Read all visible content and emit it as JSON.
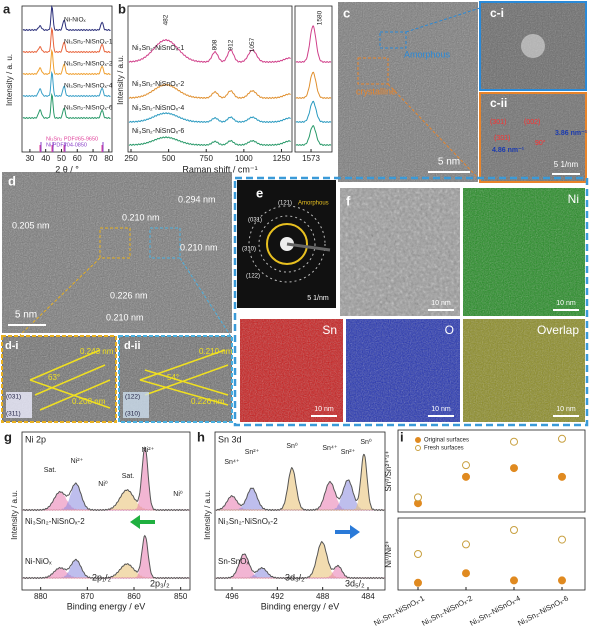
{
  "figure": {
    "a": {
      "label": "a",
      "ylabel": "Intensity / a. u.",
      "xlabel": "2 θ / °",
      "xlim": [
        25,
        82
      ],
      "xticks": [
        30,
        40,
        50,
        60,
        70,
        80
      ],
      "series": [
        {
          "name": "Ni-NiOₓ",
          "color": "#2b2f7a"
        },
        {
          "name": "Ni₃Sn₂-NiSnOₓ-1",
          "color": "#e8643c"
        },
        {
          "name": "Ni₃Sn₂-NiSnOₓ-2",
          "color": "#f0a030"
        },
        {
          "name": "Ni₃Sn₂-NiSnOₓ-4",
          "color": "#3aa0c8"
        },
        {
          "name": "Ni₃Sn₂-NiSnOₓ-6",
          "color": "#2a9a6a"
        }
      ],
      "refs": [
        {
          "name": "Ni₃Sn₂ PDF#65-9650",
          "color": "#e0409a"
        },
        {
          "name": "Ni  PDF#04-0850",
          "color": "#8a40c8"
        }
      ]
    },
    "b": {
      "label": "b",
      "ylabel": "Intensity / a.u.",
      "xlabel": "Raman shift / cm⁻¹",
      "xlim": [
        230,
        1320
      ],
      "xticks": [
        250,
        500,
        750,
        1000,
        1250
      ],
      "peaks": [
        482,
        808,
        912,
        1057
      ],
      "inset_xlim": [
        1560,
        1590
      ],
      "inset_xtick": 1573,
      "inset_peak": 1580,
      "series": [
        {
          "name": "Ni₃Sn₂-NiSnOₓ-1",
          "color": "#d0408a"
        },
        {
          "name": "Ni₃Sn₂-NiSnOₓ-2",
          "color": "#e09030"
        },
        {
          "name": "Ni₃Sn₂-NiSnOₓ-4",
          "color": "#2a9ac0"
        },
        {
          "name": "Ni₃Sn₂-NiSnOₓ-6",
          "color": "#2a9a6a"
        }
      ]
    },
    "c": {
      "label": "c",
      "amorphous": "Amorphous",
      "crystalline": "crystalline",
      "scale": "5 nm",
      "ci": {
        "label": "c-i"
      },
      "cii": {
        "label": "c-ii",
        "planes": [
          "(301)",
          "(002)",
          "(301)"
        ],
        "d1": "3.86 nm⁻¹",
        "d2": "4.86 nm⁻¹",
        "angle": "90°",
        "scale": "5 1/nm"
      }
    },
    "d": {
      "label": "d",
      "spacings": [
        "0.205 nm",
        "0.210 nm",
        "0.294 nm",
        "0.210 nm",
        "0.226 nm",
        "0.210 nm"
      ],
      "scale": "5 nm",
      "di": {
        "label": "d-i",
        "s1": "0.243 nm",
        "angle": "63°",
        "s2": "0.208 nm",
        "p1": "(031)",
        "p2": "(311)"
      },
      "dii": {
        "label": "d-ii",
        "s1": "0.210 nm",
        "angle": "54°",
        "s2": "0.226 nm",
        "p1": "(122)",
        "p2": "(310)"
      }
    },
    "e": {
      "label": "e",
      "rings": [
        "(031)",
        "(121)",
        "(310)",
        "(122)"
      ],
      "amorphous": "Amorphous",
      "scale": "5 1/nm"
    },
    "f": {
      "label": "f",
      "maps": [
        {
          "name": "Ni",
          "color": "#1f8a1f"
        },
        {
          "name": "Sn",
          "color": "#c81818"
        },
        {
          "name": "O",
          "color": "#2030b0"
        },
        {
          "name": "Overlap",
          "color": "#8a8a20"
        }
      ],
      "scale": "10 nm"
    },
    "g": {
      "label": "g",
      "title": "Ni 2p",
      "ylabel": "Intensity / a.u.",
      "xlabel": "Binding energy / eV",
      "xlim": [
        884,
        848
      ],
      "xticks": [
        880,
        870,
        860,
        850
      ],
      "peaks": [
        "Sat.",
        "Ni²⁺",
        "Ni⁰",
        "Sat.",
        "Ni²⁺",
        "Ni⁰"
      ],
      "samples": [
        "Ni₃Sn₂-NiSnOₓ-2",
        "Ni-NiOₓ"
      ],
      "orbitals": [
        "2p₁/₂",
        "2p₃/₂"
      ]
    },
    "h": {
      "label": "h",
      "title": "Sn 3d",
      "ylabel": "Intensity / a.u.",
      "xlabel": "Binding energy / eV",
      "xlim": [
        497.5,
        482.5
      ],
      "xticks": [
        496,
        492,
        488,
        484
      ],
      "peaks": [
        "Sn⁴⁺",
        "Sn²⁺",
        "Sn⁰",
        "Sn⁴⁺",
        "Sn²⁺",
        "Sn⁰"
      ],
      "samples": [
        "Ni₃Sn₂-NiSnOₓ-2",
        "Sn-SnOₓ"
      ],
      "orbitals": [
        "3d₃/₂",
        "3d₅/₂"
      ]
    },
    "i": {
      "label": "i",
      "type": "scatter",
      "categories": [
        "Ni₃Sn₂-NiSnOₓ-1",
        "Ni₃Sn₂-NiSnOₓ-2",
        "Ni₃Sn₂-NiSnOₓ-4",
        "Ni₃Sn₂-NiSnOₓ-6"
      ],
      "upper": {
        "ylabel": "Sn⁰/Sn²⁺'⁴⁺",
        "ylim": [
          0,
          1.4
        ],
        "series": [
          {
            "name": "Original surfaces",
            "color": "#e08a20",
            "values": [
              0.15,
              0.6,
              0.75,
              0.6
            ]
          },
          {
            "name": "Fresh surfaces",
            "color": "#c8a040",
            "values": [
              0.25,
              0.8,
              1.2,
              1.25
            ]
          }
        ]
      },
      "lower": {
        "ylabel": "Ni⁰/Ni²⁺",
        "ylim": [
          0,
          0.6
        ],
        "series": [
          {
            "name": "Original surfaces",
            "color": "#e08a20",
            "values": [
              0.06,
              0.14,
              0.08,
              0.08
            ]
          },
          {
            "name": "Fresh surfaces",
            "color": "#c8a040",
            "values": [
              0.3,
              0.38,
              0.5,
              0.42
            ]
          }
        ]
      }
    }
  }
}
